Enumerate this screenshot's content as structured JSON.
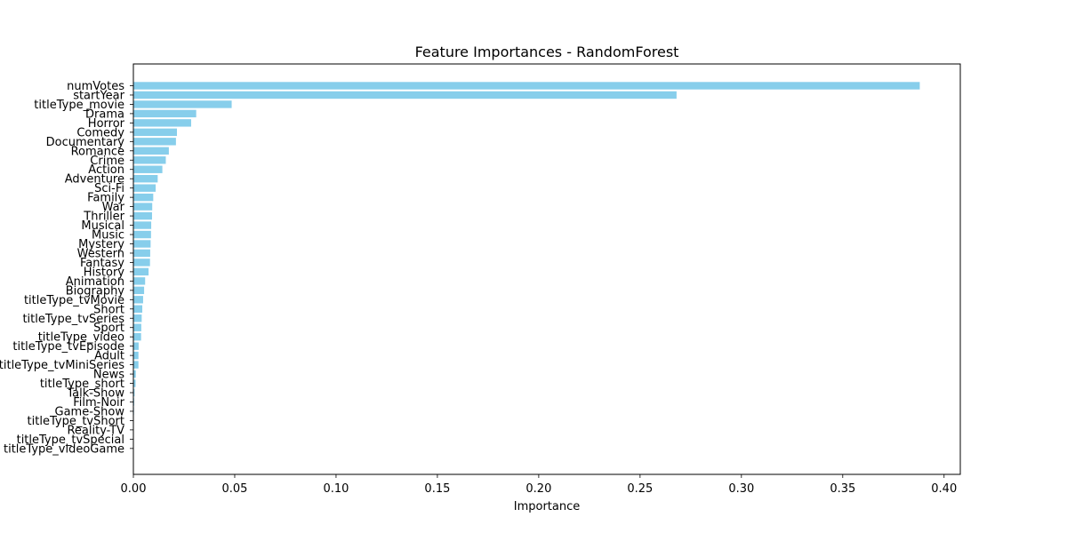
{
  "chart_data": {
    "type": "bar",
    "orientation": "horizontal",
    "title": "Feature Importances - RandomForest",
    "xlabel": "Importance",
    "ylabel": "",
    "xlim": [
      0,
      0.408
    ],
    "xticks": [
      0.0,
      0.05,
      0.1,
      0.15,
      0.2,
      0.25,
      0.3,
      0.35,
      0.4
    ],
    "xtick_labels": [
      "0.00",
      "0.05",
      "0.10",
      "0.15",
      "0.20",
      "0.25",
      "0.30",
      "0.35",
      "0.40"
    ],
    "grid": false,
    "bar_color": "#87ceeb",
    "categories": [
      "numVotes",
      "startYear",
      "titleType_movie",
      "Drama",
      "Horror",
      "Comedy",
      "Documentary",
      "Romance",
      "Crime",
      "Action",
      "Adventure",
      "Sci-Fi",
      "Family",
      "War",
      "Thriller",
      "Musical",
      "Music",
      "Mystery",
      "Western",
      "Fantasy",
      "History",
      "Animation",
      "Biography",
      "titleType_tvMovie",
      "Short",
      "titleType_tvSeries",
      "Sport",
      "titleType_video",
      "titleType_tvEpisode",
      "Adult",
      "titleType_tvMiniSeries",
      "News",
      "titleType_short",
      "Talk-Show",
      "Film-Noir",
      "Game-Show",
      "titleType_tvShort",
      "Reality-TV",
      "titleType_tvSpecial",
      "titleType_videoGame"
    ],
    "values": [
      0.388,
      0.268,
      0.0485,
      0.031,
      0.0285,
      0.0215,
      0.021,
      0.0175,
      0.016,
      0.0143,
      0.012,
      0.011,
      0.0098,
      0.0093,
      0.0092,
      0.0088,
      0.0087,
      0.0085,
      0.0083,
      0.0082,
      0.0075,
      0.0058,
      0.0053,
      0.0048,
      0.0044,
      0.0041,
      0.0039,
      0.0038,
      0.0026,
      0.0025,
      0.0025,
      0.0012,
      0.0011,
      0.0006,
      0.0004,
      0.0003,
      0.0002,
      0.0002,
      0.0001,
      5e-05
    ]
  }
}
